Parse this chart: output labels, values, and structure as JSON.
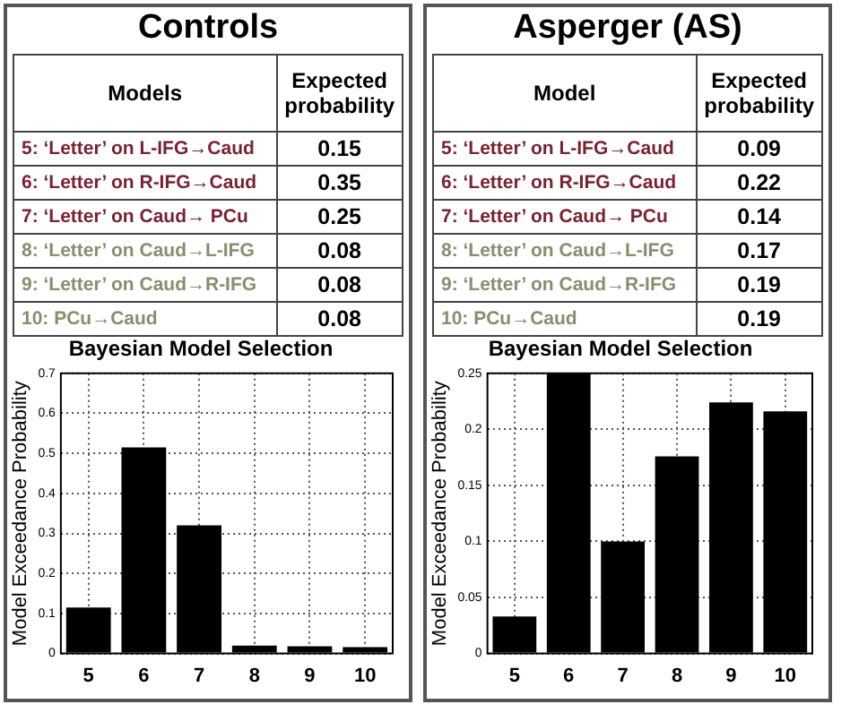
{
  "chart_data": [
    {
      "type": "other",
      "title": "Controls",
      "annotations": [
        "Models",
        "Expected probability"
      ],
      "categories": [
        "5: ‘Letter’ on L-IFG→Caud",
        "6: ‘Letter’ on R-IFG→Caud",
        "7: ‘Letter’ on Caud→ PCu",
        "8: ‘Letter’ on Caud→L-IFG",
        "9: ‘Letter’ on Caud→R-IFG",
        "10: PCu→Caud"
      ],
      "values": [
        0.15,
        0.35,
        0.25,
        0.08,
        0.08,
        0.08
      ],
      "colors": [
        "#7a2232",
        "#7a2232",
        "#7a2232",
        "#8c8c6e",
        "#8c8c6e",
        "#8c8c6e"
      ],
      "data_labels": true
    },
    {
      "type": "bar",
      "title": "Bayesian Model Selection",
      "ylabel": "Model Exceedance Probability",
      "categories": [
        "5",
        "6",
        "7",
        "8",
        "9",
        "10"
      ],
      "values": [
        0.115,
        0.515,
        0.32,
        0.02,
        0.018,
        0.016
      ],
      "color": "#000000",
      "ylim": [
        0,
        0.7
      ],
      "yticks": [
        0,
        0.1,
        0.2,
        0.3,
        0.4,
        0.5,
        0.6,
        0.7
      ],
      "grid": true,
      "legend": false
    },
    {
      "type": "other",
      "title": "Asperger (AS)",
      "annotations": [
        "Model",
        "Expected probability"
      ],
      "categories": [
        "5: ‘Letter’ on L-IFG→Caud",
        "6: ‘Letter’ on R-IFG→Caud",
        "7: ‘Letter’ on Caud→ PCu",
        "8: ‘Letter’ on Caud→L-IFG",
        "9: ‘Letter’ on Caud→R-IFG",
        "10: PCu→Caud"
      ],
      "values": [
        0.09,
        0.22,
        0.14,
        0.17,
        0.19,
        0.19
      ],
      "colors": [
        "#7a2232",
        "#7a2232",
        "#7a2232",
        "#8c8c6e",
        "#8c8c6e",
        "#8c8c6e"
      ],
      "data_labels": true
    },
    {
      "type": "bar",
      "title": "Bayesian Model Selection",
      "ylabel": "Model Exceedance Probability",
      "categories": [
        "5",
        "6",
        "7",
        "8",
        "9",
        "10"
      ],
      "values": [
        0.033,
        0.25,
        0.1,
        0.176,
        0.224,
        0.216
      ],
      "color": "#000000",
      "ylim": [
        0,
        0.25
      ],
      "yticks": [
        0,
        0.05,
        0.1,
        0.15,
        0.2,
        0.25
      ],
      "grid": true,
      "legend": false
    }
  ]
}
